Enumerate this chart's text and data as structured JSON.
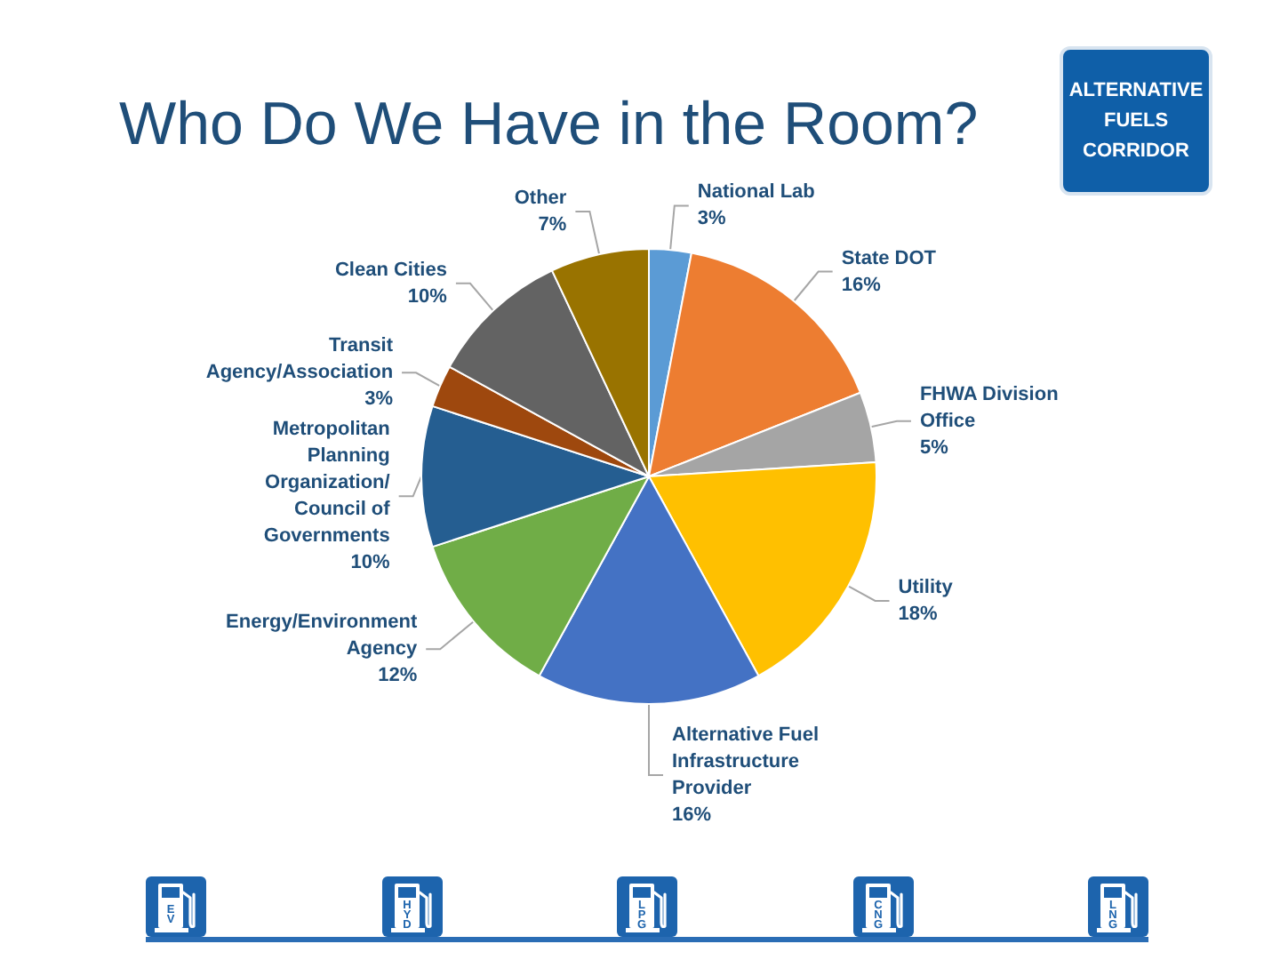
{
  "chart_data": {
    "type": "pie",
    "title": "Who Do We Have in the Room?",
    "categories": [
      "National Lab",
      "State DOT",
      "FHWA Division\nOffice",
      "Utility",
      "Alternative Fuel\nInfrastructure\nProvider",
      "Energy/Environment\nAgency",
      "Metropolitan\nPlanning\nOrganization/\nCouncil of\nGovernments",
      "Transit\nAgency/Association",
      "Clean Cities",
      "Other"
    ],
    "values": [
      3,
      16,
      5,
      18,
      16,
      12,
      10,
      3,
      10,
      7
    ],
    "value_labels": [
      "3%",
      "16%",
      "5%",
      "18%",
      "16%",
      "12%",
      "10%",
      "3%",
      "10%",
      "7%"
    ],
    "colors": [
      "#5b9bd5",
      "#ed7d31",
      "#a5a5a5",
      "#ffc000",
      "#4472c4",
      "#70ad47",
      "#255e91",
      "#9e480e",
      "#636363",
      "#997300"
    ],
    "annotations": [
      "ALTERNATIVE FUELS CORRIDOR",
      "EV",
      "HYD",
      "LPG",
      "CNG",
      "LNG"
    ]
  }
}
